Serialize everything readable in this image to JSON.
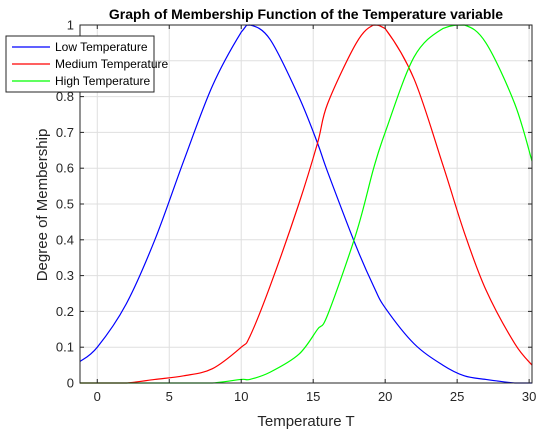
{
  "chart_data": {
    "type": "line",
    "title": "Graph of Membership Function of the Temperature variable",
    "xlabel": "Temperature T",
    "ylabel": "Degree of Membership",
    "xlim": [
      -1.2,
      30.2
    ],
    "ylim": [
      0,
      1
    ],
    "xticks": [
      0,
      5,
      10,
      15,
      20,
      25,
      30
    ],
    "xtick_labels": [
      "0",
      "5",
      "10",
      "15",
      "20",
      "25",
      "30"
    ],
    "yticks": [
      0,
      0.1,
      0.2,
      0.3,
      0.4,
      0.5,
      0.6,
      0.7,
      0.8,
      0.9,
      1
    ],
    "ytick_labels": [
      "0",
      "0.1",
      "0.2",
      "0.3",
      "0.4",
      "0.5",
      "0.6",
      "0.7",
      "0.8",
      "0.9",
      "1"
    ],
    "grid": true,
    "legend_position": "top-left",
    "x": [
      -1.2,
      0,
      2,
      4,
      6,
      8,
      10,
      10.6,
      12,
      14,
      15.3,
      16,
      18,
      19.2,
      20,
      22,
      24,
      25.5,
      27,
      29,
      30.2
    ],
    "series": [
      {
        "name": "Low Temperature",
        "color": "#0000ff",
        "values": [
          0.06,
          0.1,
          0.22,
          0.4,
          0.62,
          0.83,
          0.98,
          1.0,
          0.96,
          0.8,
          0.67,
          0.59,
          0.38,
          0.27,
          0.21,
          0.11,
          0.05,
          0.02,
          0.01,
          0.0,
          0.0
        ]
      },
      {
        "name": "Medium Temperature",
        "color": "#ff0000",
        "values": [
          0.0,
          0.0,
          0.0,
          0.01,
          0.02,
          0.04,
          0.1,
          0.13,
          0.27,
          0.5,
          0.67,
          0.78,
          0.95,
          1.0,
          0.99,
          0.85,
          0.61,
          0.42,
          0.26,
          0.11,
          0.05
        ]
      },
      {
        "name": "High Temperature",
        "color": "#00ff00",
        "values": [
          0.0,
          0.0,
          0.0,
          0.0,
          0.0,
          0.0,
          0.01,
          0.01,
          0.03,
          0.08,
          0.15,
          0.19,
          0.42,
          0.6,
          0.7,
          0.91,
          0.99,
          1.0,
          0.95,
          0.78,
          0.62
        ]
      }
    ]
  }
}
